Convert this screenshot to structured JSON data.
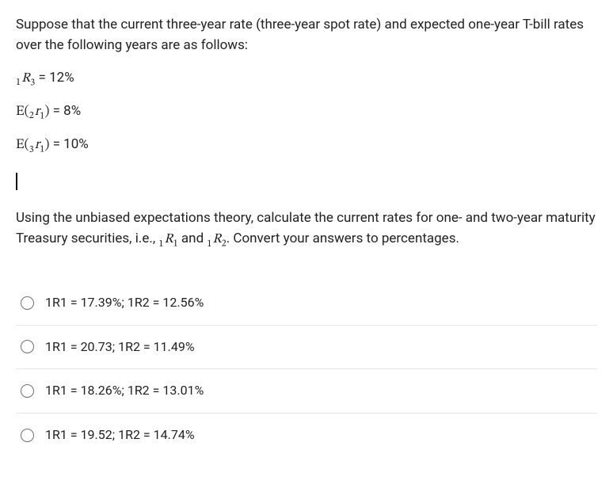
{
  "intro": "Suppose that the current three-year rate (three-year spot rate) and expected one-year T-bill rates over the following years are as follows:",
  "eq1": {
    "pre": "1",
    "var": "R",
    "sub": "3",
    "rhs": " = 12%"
  },
  "eq2": {
    "fn": "E(",
    "pre": "2",
    "var": "r",
    "sub": "1",
    "close": ")",
    "rhs": " = 8%"
  },
  "eq3": {
    "fn": "E(",
    "pre": "3",
    "var": "r",
    "sub": "1",
    "close": ")",
    "rhs": " = 10%"
  },
  "body_before": "Using the unbiased expectations theory, calculate the current rates for one- and two-year maturity Treasury securities, i.e., ",
  "body_r1": {
    "pre": "1",
    "var": "R",
    "sub": "1"
  },
  "body_and": " and ",
  "body_r2": {
    "pre": "1",
    "var": "R",
    "sub": "2"
  },
  "body_after": ". Convert your answers to percentages.",
  "options": [
    "1R1 = 17.39%; 1R2 = 12.56%",
    "1R1 = 20.73; 1R2 = 11.49%",
    "1R1 = 18.26%; 1R2 = 13.01%",
    "1R1 = 19.52; 1R2 = 14.74%"
  ],
  "colors": {
    "text": "#222222",
    "border": "#e6e6e6",
    "radio_border": "#707070",
    "background": "#ffffff"
  }
}
